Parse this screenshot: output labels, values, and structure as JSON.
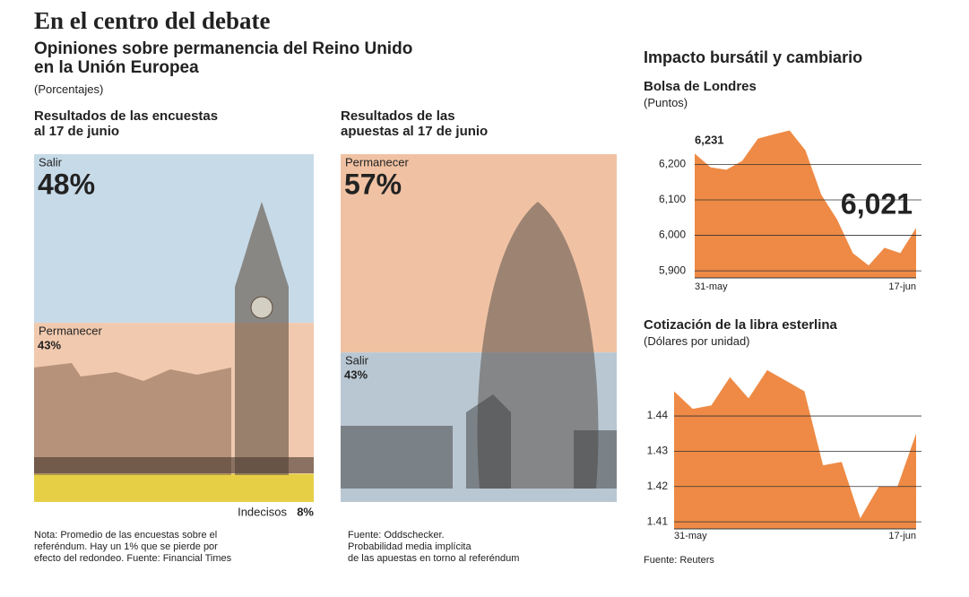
{
  "header": {
    "title": "En el centro del debate",
    "subtitle": "Opiniones sobre permanencia del Reino Unido\nen la Unión Europea",
    "unit": "(Porcentajes)"
  },
  "market": {
    "title": "Impacto bursátil y cambiario",
    "source": "Fuente: Reuters"
  },
  "chart_data": [
    {
      "type": "stacked-column",
      "title": "Resultados de las encuestas\nal 17 de junio",
      "categories": [
        "Salir",
        "Permanecer",
        "Indecisos"
      ],
      "values": [
        48,
        43,
        8
      ],
      "value_labels": [
        "48%",
        "43%",
        "8%"
      ],
      "colors": [
        "#c7dae8",
        "#f1c9ae",
        "#e6cf45"
      ],
      "note": "Nota: Promedio de las encuestas sobre el\nreferéndum. Hay un 1% que se pierde por\nefecto del redondeo. Fuente: Financial Times"
    },
    {
      "type": "stacked-column",
      "title": "Resultados de las\napuestas al 17 de junio",
      "categories": [
        "Permanecer",
        "Salir"
      ],
      "values": [
        57,
        43
      ],
      "value_labels": [
        "57%",
        "43%"
      ],
      "colors": [
        "#f0c2a3",
        "#b9c7d2"
      ],
      "note": "Fuente: Oddschecker.\nProbabilidad media implícita\nde las apuestas en torno al referéndum"
    },
    {
      "type": "area",
      "title": "Bolsa de Londres",
      "unit": "(Puntos)",
      "categories": [
        "31-may",
        null,
        null,
        null,
        null,
        null,
        null,
        null,
        null,
        null,
        null,
        null,
        null,
        null,
        "17-jun"
      ],
      "values": [
        6231,
        6192,
        6185,
        6210,
        6273,
        6285,
        6296,
        6240,
        6115,
        6045,
        5950,
        5915,
        5965,
        5950,
        6021
      ],
      "value_labels": [
        "6,231",
        null,
        null,
        null,
        null,
        null,
        null,
        null,
        null,
        null,
        null,
        null,
        null,
        null,
        "6,021"
      ],
      "color": "#ee8a45",
      "ylim": [
        5880,
        6310
      ],
      "yticks": [
        {
          "value": 5900,
          "label": "5,900"
        },
        {
          "value": 6000,
          "label": "6,000"
        },
        {
          "value": 6100,
          "label": "6,100"
        },
        {
          "value": 6200,
          "label": "6,200"
        }
      ],
      "grid": true
    },
    {
      "type": "area",
      "title": "Cotización de la libra esterlina",
      "unit": "(Dólares por unidad)",
      "categories": [
        "31-may",
        null,
        null,
        null,
        null,
        null,
        null,
        null,
        null,
        null,
        null,
        null,
        null,
        "17-jun"
      ],
      "values": [
        1.447,
        1.442,
        1.443,
        1.451,
        1.445,
        1.453,
        1.45,
        1.447,
        1.426,
        1.427,
        1.411,
        1.42,
        1.42,
        1.435
      ],
      "color": "#ee8a45",
      "ylim": [
        1.408,
        1.455
      ],
      "yticks": [
        1.41,
        1.42,
        1.43,
        1.44
      ],
      "grid": true
    }
  ]
}
